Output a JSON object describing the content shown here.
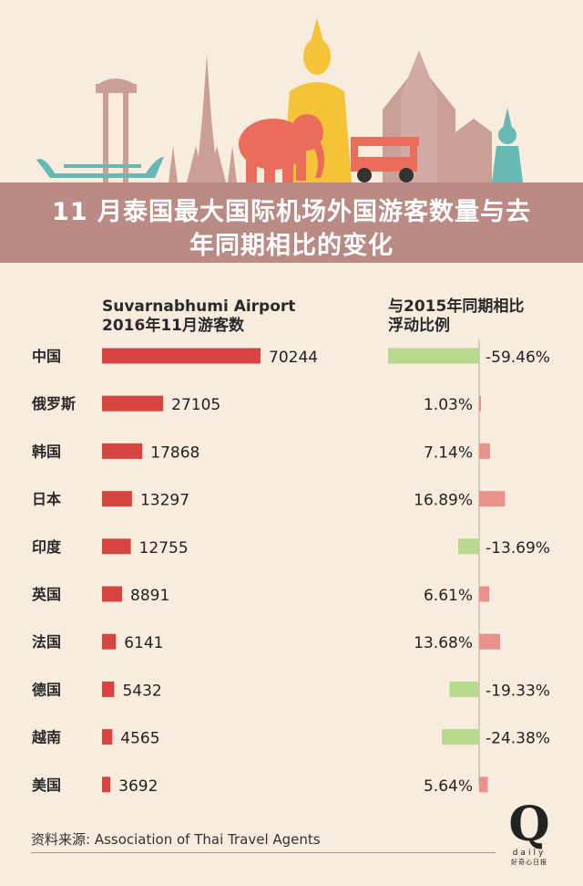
{
  "title_line1": "11 月泰国最大国际机场外国游客数量与去",
  "title_line2": "年同期相比的变化",
  "left_header_line1": "Suvarnabhumi Airport",
  "left_header_line2": "2016年11月游客数",
  "right_header_line1": "与2015年同期相比",
  "right_header_line2": "浮动比例",
  "source": "资料来源: Association of Thai Travel Agents",
  "logo": {
    "letter": "Q",
    "word": "daily",
    "cn": "好奇心日报"
  },
  "colors": {
    "background": "#f7ecdd",
    "title_band": "#b98b84",
    "visitor_bar": "#d64541",
    "decrease_bar": "#b7d98c",
    "increase_bar": "#e8928b",
    "elephant": "#ea6c5a",
    "buddha": "#f5c337",
    "tuktuk": "#ea6c5a",
    "boat": "#67b9b5",
    "temple": "#c99f96"
  },
  "chart_data": [
    {
      "type": "bar",
      "title": "Suvarnabhumi Airport 2016年11月游客数",
      "categories": [
        "中国",
        "俄罗斯",
        "韩国",
        "日本",
        "印度",
        "英国",
        "法国",
        "德国",
        "越南",
        "美国"
      ],
      "values": [
        70244,
        27105,
        17868,
        13297,
        12755,
        8891,
        6141,
        5432,
        4565,
        3692
      ],
      "value_labels": [
        "70244",
        "27105",
        "17868",
        "13297",
        "12755",
        "8891",
        "6141",
        "5432",
        "4565",
        "3692"
      ],
      "orientation": "horizontal"
    },
    {
      "type": "bar",
      "title": "与2015年同期相比浮动比例",
      "categories": [
        "中国",
        "俄罗斯",
        "韩国",
        "日本",
        "印度",
        "英国",
        "法国",
        "德国",
        "越南",
        "美国"
      ],
      "values": [
        -59.46,
        1.03,
        7.14,
        16.89,
        -13.69,
        6.61,
        13.68,
        -19.33,
        -24.38,
        5.64
      ],
      "value_labels": [
        "-59.46%",
        "1.03%",
        "7.14%",
        "16.89%",
        "-13.69%",
        "6.61%",
        "13.68%",
        "-19.33%",
        "-24.38%",
        "5.64%"
      ],
      "orientation": "horizontal",
      "unit": "%"
    }
  ]
}
